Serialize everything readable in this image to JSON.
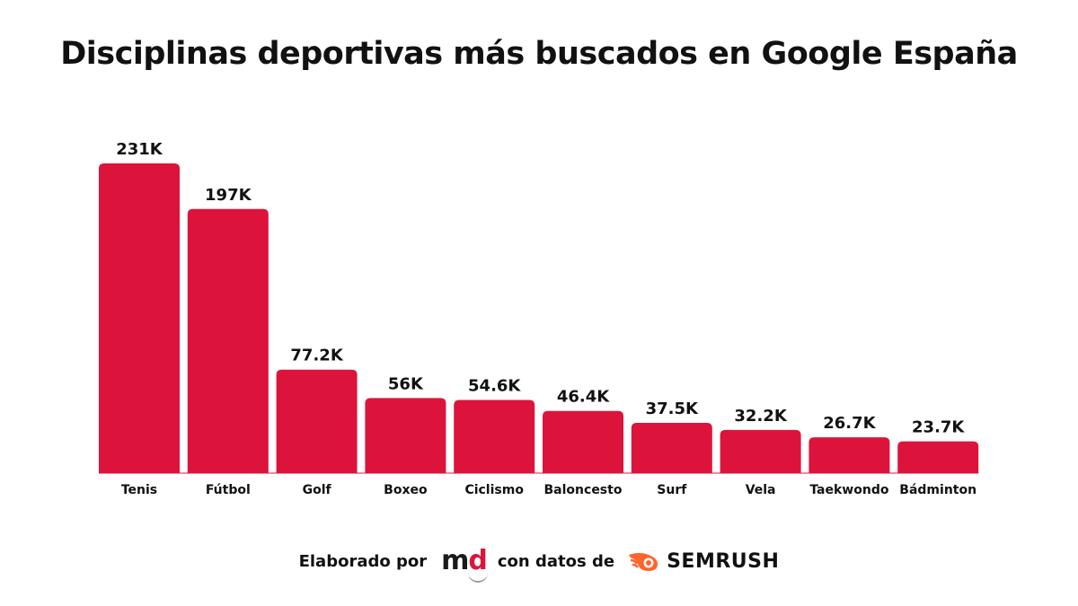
{
  "chart_data": {
    "type": "bar",
    "title": "Disciplinas deportivas más buscados en Google España",
    "categories": [
      "Tenis",
      "Fútbol",
      "Golf",
      "Boxeo",
      "Ciclismo",
      "Baloncesto",
      "Surf",
      "Vela",
      "Taekwondo",
      "Bádminton"
    ],
    "values": [
      231000,
      197000,
      77200,
      56000,
      54600,
      46400,
      37500,
      32200,
      26700,
      23700
    ],
    "data_labels": [
      "231K",
      "197K",
      "77.2K",
      "56K",
      "54.6K",
      "46.4K",
      "37.5K",
      "32.2K",
      "26.7K",
      "23.7K"
    ],
    "xlabel": "",
    "ylabel": "",
    "ylim": [
      0,
      231000
    ],
    "grid": false,
    "bar_color": "#dc143c",
    "label_color": "#111111"
  },
  "footer": {
    "made_by": "Elaborado por",
    "logo_m": "m",
    "logo_d": "d",
    "with_data": "con datos de",
    "semrush_word": "SEMRUSH",
    "semrush_color": "#ff642d"
  }
}
